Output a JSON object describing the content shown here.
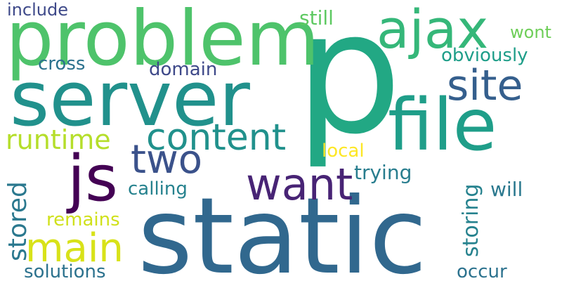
{
  "words": {
    "p": {
      "text": "p",
      "color": "#22a884"
    },
    "static": {
      "text": "static",
      "color": "#31688e"
    },
    "problem": {
      "text": "problem",
      "color": "#4ec36b"
    },
    "server": {
      "text": "server",
      "color": "#21918c"
    },
    "file": {
      "text": "file",
      "color": "#1f9e89"
    },
    "ajax": {
      "text": "ajax",
      "color": "#35b779"
    },
    "site": {
      "text": "site",
      "color": "#355f8d"
    },
    "content": {
      "text": "content",
      "color": "#21918c"
    },
    "js": {
      "text": "js",
      "color": "#440154"
    },
    "two": {
      "text": "two",
      "color": "#3b528b"
    },
    "want": {
      "text": "want",
      "color": "#482475"
    },
    "main": {
      "text": "main",
      "color": "#d8e219"
    },
    "runtime": {
      "text": "runtime",
      "color": "#b5de2b"
    },
    "stored": {
      "text": "stored",
      "color": "#2a788e"
    },
    "include": {
      "text": "include",
      "color": "#3e4989"
    },
    "cross": {
      "text": "cross",
      "color": "#2c728e"
    },
    "domain": {
      "text": "domain",
      "color": "#3e4989"
    },
    "still": {
      "text": "still",
      "color": "#5ec962"
    },
    "wont": {
      "text": "wont",
      "color": "#6ece58"
    },
    "obviously": {
      "text": "obviously",
      "color": "#1f9e89"
    },
    "local": {
      "text": "local",
      "color": "#fde725"
    },
    "trying": {
      "text": "trying",
      "color": "#287d8e"
    },
    "calling": {
      "text": "calling",
      "color": "#26828e"
    },
    "storing": {
      "text": "storing",
      "color": "#26828e"
    },
    "will": {
      "text": "will",
      "color": "#2a788e"
    },
    "remains": {
      "text": "remains",
      "color": "#d0e11c"
    },
    "solutions": {
      "text": "solutions",
      "color": "#2c728e"
    },
    "occur": {
      "text": "occur",
      "color": "#2c728e"
    }
  }
}
